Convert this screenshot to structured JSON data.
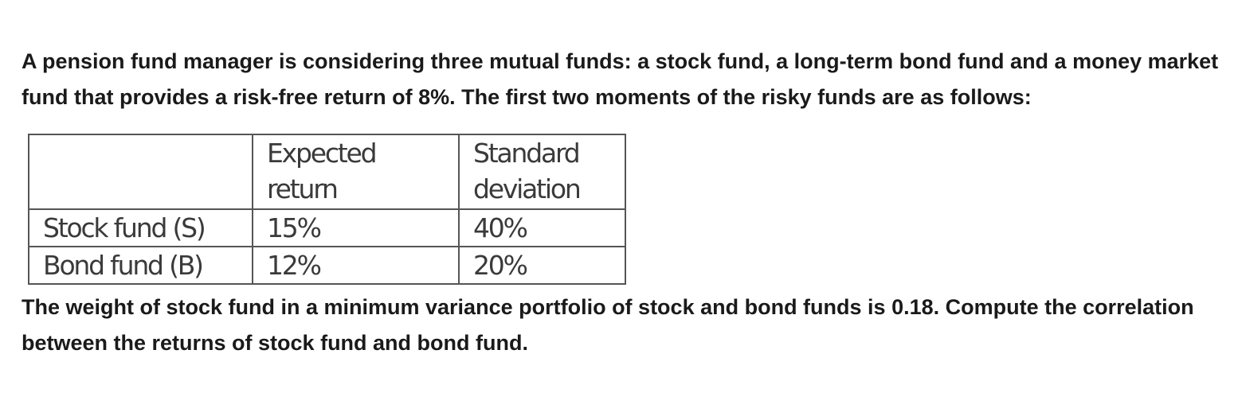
{
  "question": {
    "intro": "A pension fund manager is considering three mutual funds: a stock fund, a long-term bond fund and a money market fund that provides a risk-free return of 8%. The first two moments of the risky funds are as follows:",
    "table": {
      "header": {
        "blank": "",
        "expected_line1": "Expected",
        "expected_line2": "return",
        "stddev_line1": "Standard",
        "stddev_line2": "deviation"
      },
      "rows": [
        {
          "fund": "Stock fund (S)",
          "expected": "15%",
          "stddev": "40%"
        },
        {
          "fund": "Bond fund (B)",
          "expected": "12%",
          "stddev": "20%"
        }
      ]
    },
    "task": "The weight of stock fund in a minimum variance portfolio of stock and bond funds is 0.18. Compute the correlation between the returns of stock fund and bond fund."
  }
}
